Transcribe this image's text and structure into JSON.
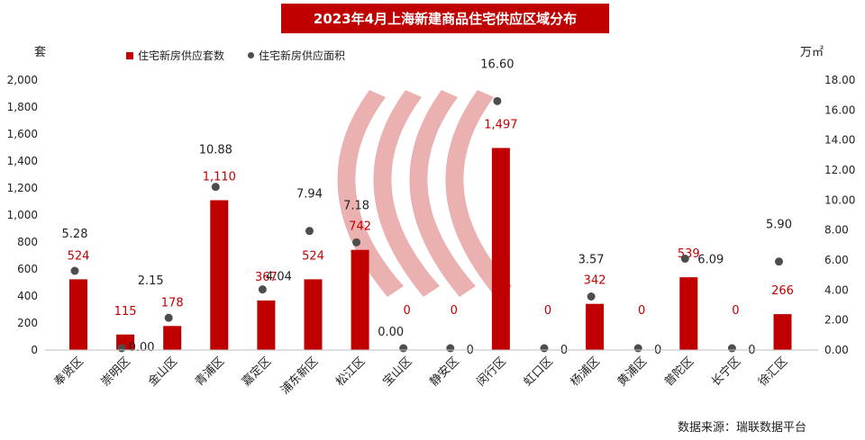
{
  "chart_data": {
    "type": "bar",
    "title": "2023年4月上海新建商品住宅供应区域分布",
    "left_unit": "套",
    "right_unit": "万㎡",
    "categories": [
      "奉贤区",
      "崇明区",
      "金山区",
      "青浦区",
      "嘉定区",
      "浦东新区",
      "松江区",
      "宝山区",
      "静安区",
      "闵行区",
      "虹口区",
      "杨浦区",
      "黄浦区",
      "普陀区",
      "长宁区",
      "徐汇区"
    ],
    "series": [
      {
        "name": "住宅新房供应套数",
        "type": "bar",
        "axis": "left",
        "color": "#c00000",
        "values": [
          524,
          115,
          178,
          1110,
          367,
          524,
          742,
          0,
          0,
          1497,
          0,
          342,
          0,
          539,
          0,
          266
        ],
        "labels": [
          "524",
          "115",
          "178",
          "1,110",
          "367",
          "524",
          "742",
          "0",
          "0",
          "1,497",
          "0",
          "342",
          "0",
          "539",
          "0",
          "266"
        ]
      },
      {
        "name": "住宅新房供应面积",
        "type": "scatter",
        "axis": "right",
        "color": "#4d4d4d",
        "values": [
          5.28,
          0.0,
          2.15,
          10.88,
          4.04,
          7.94,
          7.18,
          0.0,
          0,
          16.6,
          0,
          3.57,
          0,
          6.09,
          0,
          5.9
        ],
        "labels": [
          "5.28",
          "0.00",
          "2.15",
          "10.88",
          "4.04",
          "7.94",
          "7.18",
          "0.00",
          "0",
          "16.60",
          "0",
          "3.57",
          "0",
          "6.09",
          "0",
          "5.90"
        ]
      }
    ],
    "left_axis": {
      "min": 0,
      "max": 2000,
      "ticks": [
        "0",
        "200",
        "400",
        "600",
        "800",
        "1,000",
        "1,200",
        "1,400",
        "1,600",
        "1,800",
        "2,000"
      ]
    },
    "right_axis": {
      "min": 0,
      "max": 18,
      "ticks": [
        "0.00",
        "2.00",
        "4.00",
        "6.00",
        "8.00",
        "10.00",
        "12.00",
        "14.00",
        "16.00",
        "18.00"
      ]
    },
    "legend_position": "top-left",
    "grid": false
  },
  "source": "数据来源：瑞联数据平台"
}
